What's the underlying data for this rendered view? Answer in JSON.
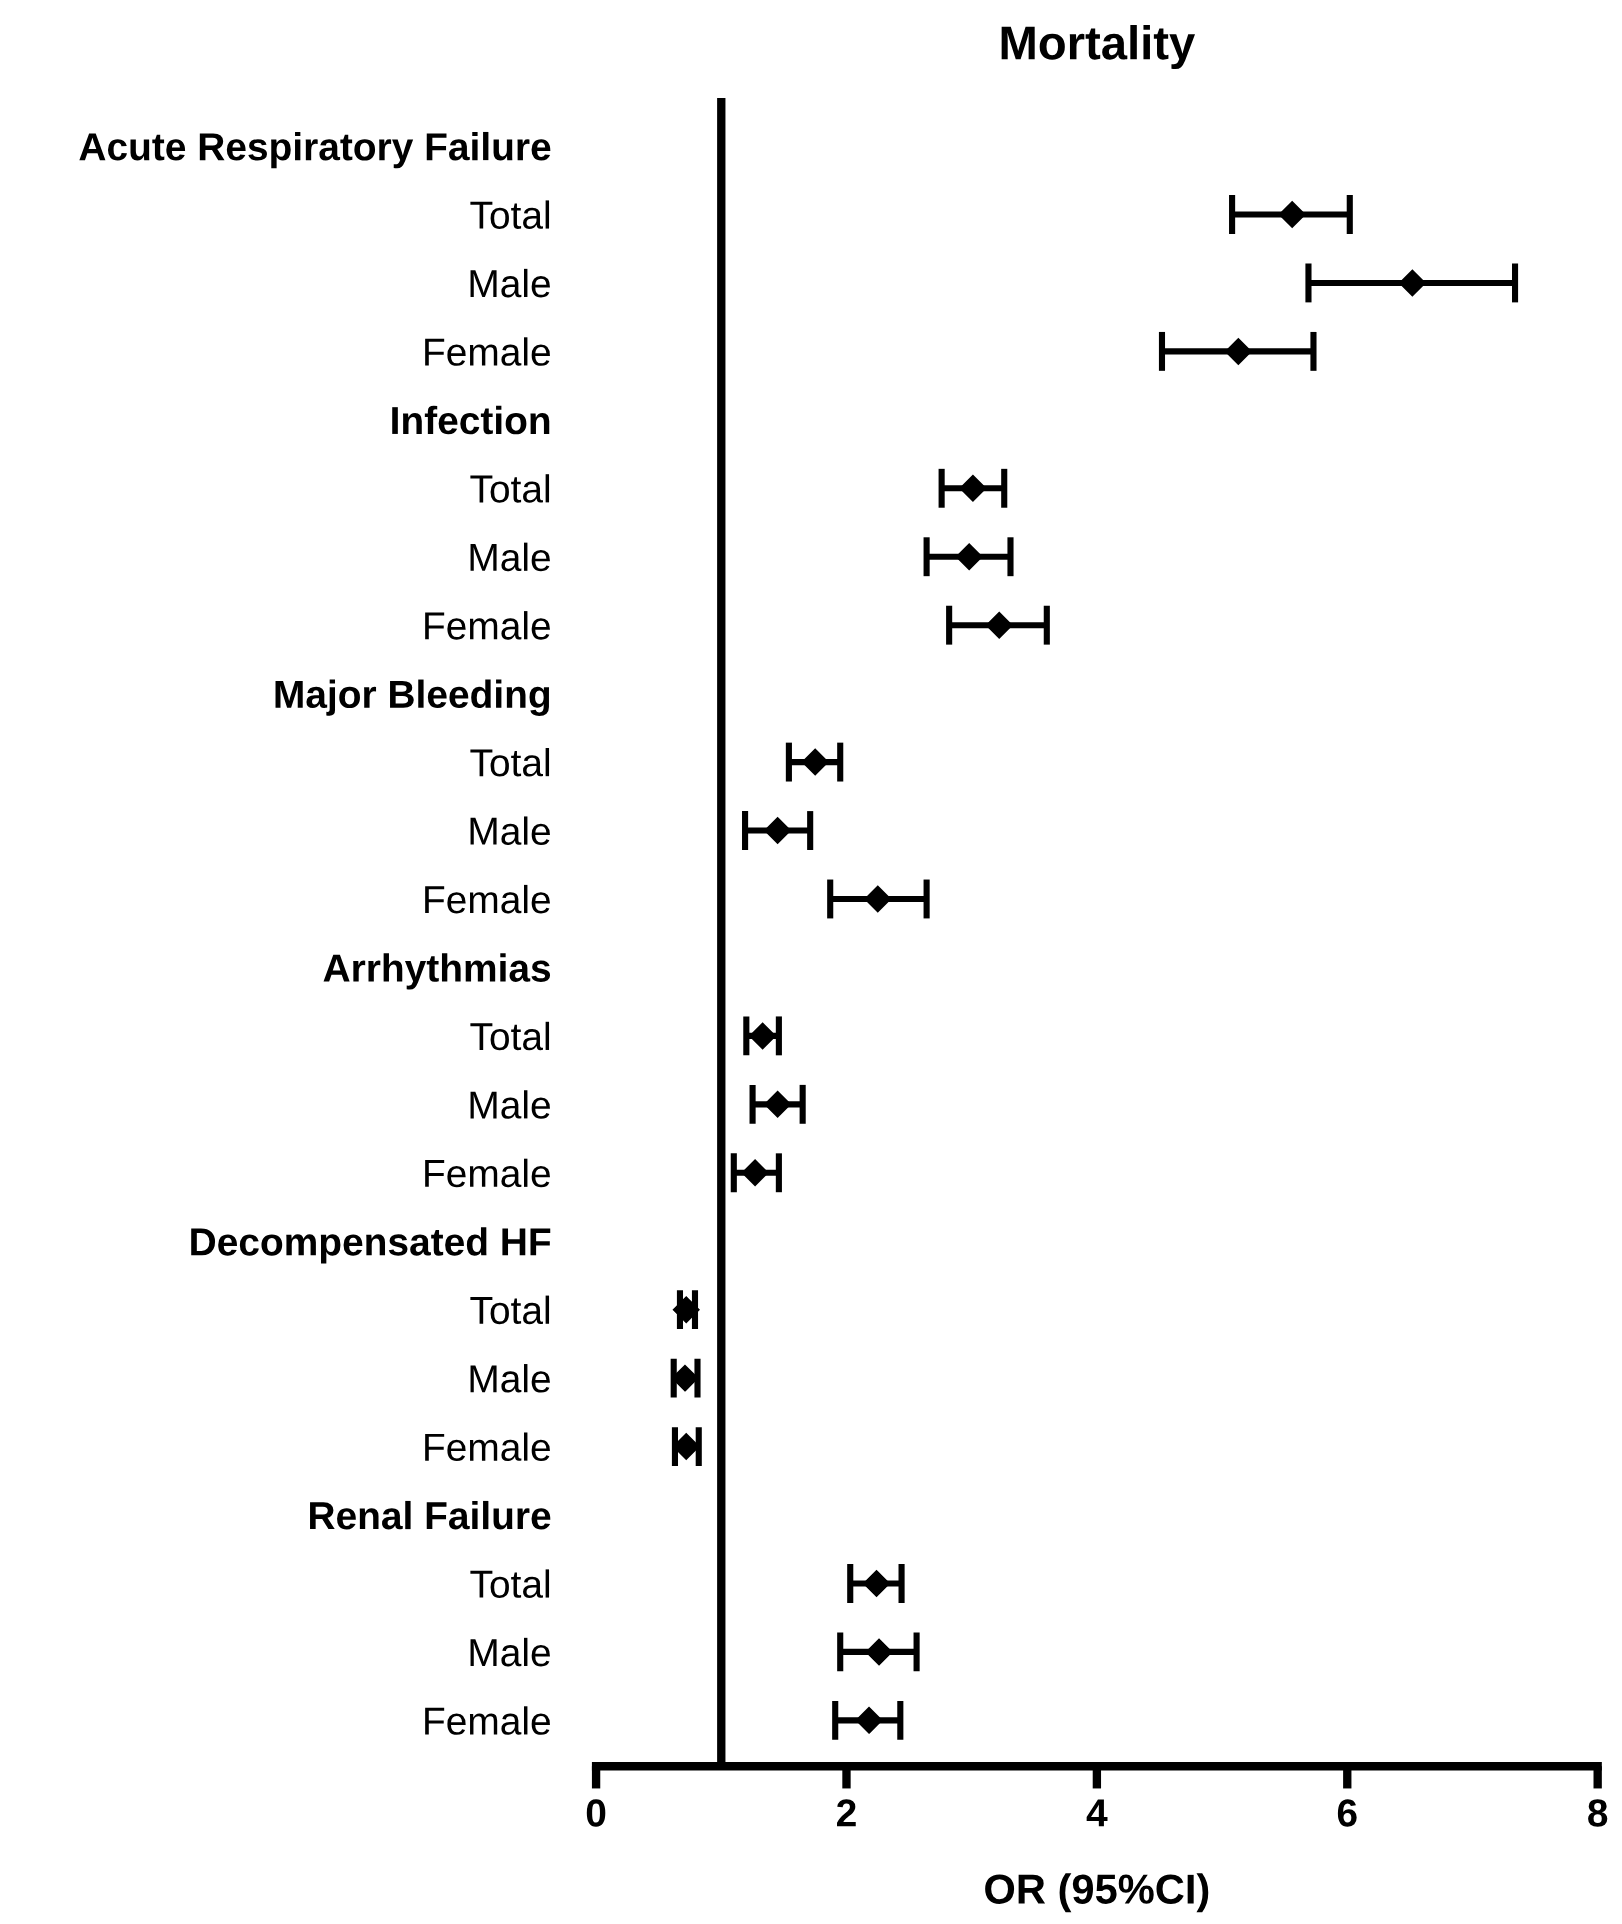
{
  "chart_data": {
    "type": "scatter",
    "orientation": "horizontal",
    "title": "Mortality",
    "xlabel": "OR (95%CI)",
    "categories": [
      "Acute Respiratory Failure",
      "Total",
      "Male",
      "Female",
      "Infection",
      "Total",
      "Male",
      "Female",
      "Major Bleeding",
      "Total",
      "Male",
      "Female",
      "Arrhythmias",
      "Total",
      "Male",
      "Female",
      "Decompensated HF",
      "Total",
      "Male",
      "Female",
      "Renal Failure",
      "Total",
      "Male",
      "Female"
    ],
    "values": [
      null,
      5.56,
      6.52,
      5.13,
      null,
      3.01,
      2.98,
      3.22,
      null,
      1.75,
      1.45,
      2.25,
      null,
      1.33,
      1.45,
      1.27,
      null,
      0.72,
      0.71,
      0.72,
      null,
      2.24,
      2.26,
      2.18
    ],
    "errors": [
      null,
      [
        5.08,
        6.02
      ],
      [
        5.69,
        7.34
      ],
      [
        4.52,
        5.73
      ],
      null,
      [
        2.76,
        3.26
      ],
      [
        2.64,
        3.31
      ],
      [
        2.82,
        3.6
      ],
      null,
      [
        1.54,
        1.95
      ],
      [
        1.19,
        1.71
      ],
      [
        1.87,
        2.64
      ],
      null,
      [
        1.2,
        1.46
      ],
      [
        1.25,
        1.65
      ],
      [
        1.1,
        1.46
      ],
      null,
      [
        0.67,
        0.79
      ],
      [
        0.62,
        0.81
      ],
      [
        0.63,
        0.82
      ],
      null,
      [
        2.03,
        2.44
      ],
      [
        1.95,
        2.56
      ],
      [
        1.91,
        2.43
      ]
    ],
    "color": "#000000",
    "marker": "diamond",
    "grid": false,
    "xlim": [
      0,
      8
    ],
    "xticks": [
      0,
      2,
      4,
      6,
      8
    ],
    "ref_lines": [
      {
        "axis": "x",
        "value": 1,
        "color": "#000000",
        "line_style": "solid"
      }
    ]
  }
}
